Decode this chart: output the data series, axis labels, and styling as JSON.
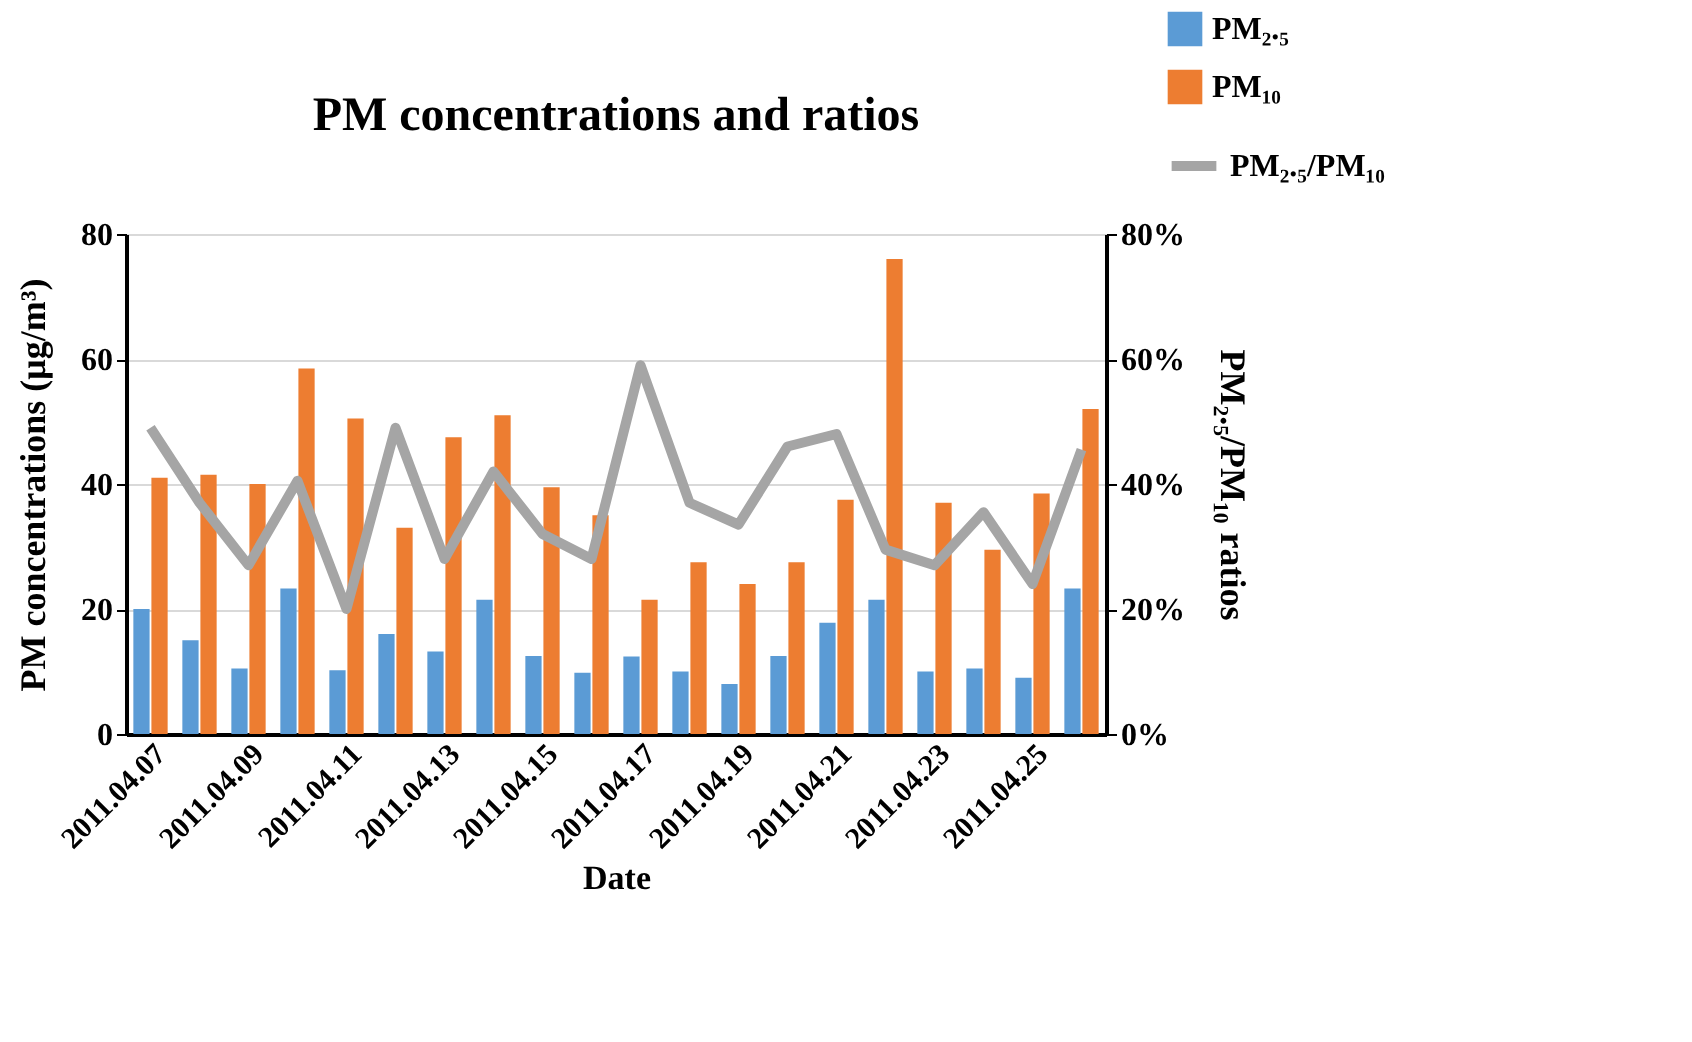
{
  "chart_data": {
    "type": "bar",
    "title": "PM concentrations and ratios",
    "xlabel": "Date",
    "ylabel": "PM concentrations (μg/m³)",
    "y2label": "PM₂.₅/PM₁₀  ratios",
    "categories": [
      "2011.04.07",
      null,
      "2011.04.09",
      null,
      "2011.04.11",
      null,
      "2011.04.13",
      null,
      "2011.04.15",
      null,
      "2011.04.17",
      null,
      "2011.04.19",
      null,
      "2011.04.21",
      null,
      "2011.04.23",
      null,
      "2011.04.25",
      null
    ],
    "series": [
      {
        "name": "PM₂.₅",
        "color": "#5b9bd5",
        "values": [
          20,
          15,
          10.5,
          23.3,
          10.2,
          16,
          13.2,
          21.5,
          12.5,
          9.8,
          12.4,
          10,
          8,
          12.5,
          17.8,
          21.5,
          10,
          10.5,
          9,
          23.3
        ]
      },
      {
        "name": "PM₁₀",
        "color": "#ed7d31",
        "values": [
          41,
          41.5,
          40,
          58.5,
          50.5,
          33,
          47.5,
          51,
          39.5,
          35,
          21.5,
          27.5,
          24,
          27.5,
          37.5,
          76,
          37,
          29.5,
          38.5,
          52
        ]
      },
      {
        "name": "PM₂.₅/PM₁₀",
        "color": "#a5a5a5",
        "type": "line",
        "axis": "y2",
        "values": [
          49,
          37,
          27,
          40.5,
          20,
          49,
          28,
          42,
          32,
          28,
          59,
          37,
          33.5,
          46,
          48,
          29.5,
          27,
          35.5,
          24,
          45.5
        ]
      }
    ],
    "ylim": [
      0,
      80
    ],
    "yticks": [
      0,
      20,
      40,
      60,
      80
    ],
    "y2lim": [
      0,
      80
    ],
    "y2ticks": [
      {
        "value": 0,
        "label": "0%"
      },
      {
        "value": 20,
        "label": "20%"
      },
      {
        "value": 40,
        "label": "40%"
      },
      {
        "value": 60,
        "label": "60%"
      },
      {
        "value": 80,
        "label": "80%"
      }
    ],
    "grid": "y",
    "legend": "top right",
    "marker": "none",
    "line_style": "solid"
  }
}
